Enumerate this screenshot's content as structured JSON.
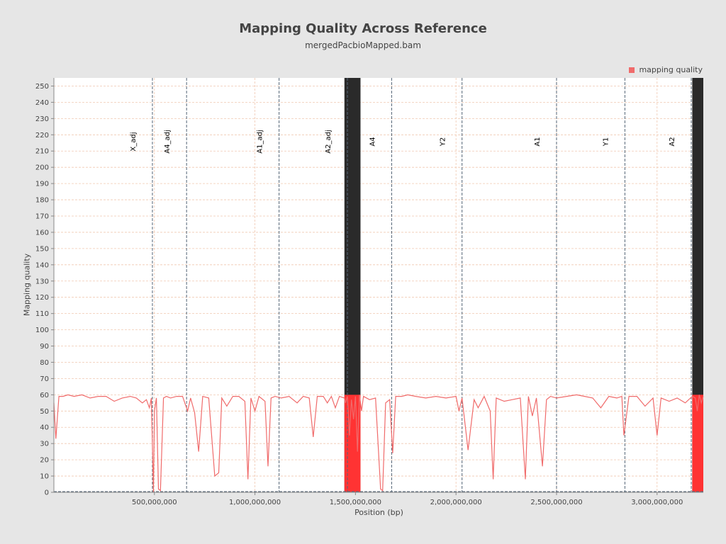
{
  "chart_data": {
    "type": "line",
    "title": "Mapping Quality Across Reference",
    "subtitle": "mergedPacbioMapped.bam",
    "xlabel": "Position (bp)",
    "ylabel": "Mapping quality",
    "xlim": [
      0,
      3230000000
    ],
    "ylim": [
      0,
      255
    ],
    "x_ticks": [
      500000000,
      1000000000,
      1500000000,
      2000000000,
      2500000000,
      3000000000
    ],
    "x_tick_labels": [
      "500,000,000",
      "1,000,000,000",
      "1,500,000,000",
      "2,000,000,000",
      "2,500,000,000",
      "3,000,000,000"
    ],
    "y_ticks": [
      0,
      10,
      20,
      30,
      40,
      50,
      60,
      70,
      80,
      90,
      100,
      110,
      120,
      130,
      140,
      150,
      160,
      170,
      180,
      190,
      200,
      210,
      220,
      230,
      240,
      250
    ],
    "grid": true,
    "legend": {
      "position": "top-right",
      "entries": [
        "mapping quality"
      ]
    },
    "colors": {
      "series": "#f06b6b",
      "background": "#ffffff",
      "grid": "#f0c8b0",
      "dense_band": "#2a2a2a",
      "dense_fill": "#ff3333"
    },
    "series": [
      {
        "name": "mapping quality",
        "x": [
          0,
          10000000,
          25000000,
          45000000,
          70000000,
          100000000,
          140000000,
          180000000,
          220000000,
          260000000,
          300000000,
          340000000,
          380000000,
          410000000,
          440000000,
          460000000,
          475000000,
          485000000,
          495000000,
          500000000,
          510000000,
          520000000,
          530000000,
          545000000,
          560000000,
          580000000,
          610000000,
          640000000,
          665000000,
          680000000,
          700000000,
          720000000,
          740000000,
          770000000,
          800000000,
          820000000,
          835000000,
          860000000,
          890000000,
          920000000,
          950000000,
          965000000,
          980000000,
          1000000000,
          1020000000,
          1050000000,
          1065000000,
          1080000000,
          1100000000,
          1130000000,
          1170000000,
          1210000000,
          1240000000,
          1270000000,
          1290000000,
          1310000000,
          1340000000,
          1360000000,
          1380000000,
          1400000000,
          1420000000,
          1445000000,
          1450000000,
          1460000000,
          1470000000,
          1480000000,
          1490000000,
          1500000000,
          1510000000,
          1520000000,
          1530000000,
          1540000000,
          1570000000,
          1600000000,
          1625000000,
          1635000000,
          1650000000,
          1670000000,
          1685000000,
          1700000000,
          1730000000,
          1760000000,
          1800000000,
          1850000000,
          1900000000,
          1950000000,
          2000000000,
          2015000000,
          2030000000,
          2060000000,
          2090000000,
          2110000000,
          2140000000,
          2170000000,
          2185000000,
          2200000000,
          2240000000,
          2280000000,
          2320000000,
          2345000000,
          2360000000,
          2380000000,
          2400000000,
          2430000000,
          2450000000,
          2470000000,
          2500000000,
          2550000000,
          2600000000,
          2640000000,
          2680000000,
          2720000000,
          2760000000,
          2800000000,
          2825000000,
          2835000000,
          2860000000,
          2900000000,
          2940000000,
          2980000000,
          3000000000,
          3020000000,
          3060000000,
          3100000000,
          3140000000,
          3175000000,
          3190000000,
          3200000000,
          3210000000,
          3220000000,
          3230000000
        ],
        "values": [
          55,
          33,
          59,
          59,
          60,
          59,
          60,
          58,
          59,
          59,
          56,
          58,
          59,
          58,
          55,
          57,
          52,
          58,
          0,
          50,
          58,
          2,
          1,
          58,
          59,
          58,
          59,
          59,
          50,
          58,
          49,
          25,
          59,
          58,
          10,
          12,
          58,
          53,
          59,
          59,
          56,
          8,
          58,
          50,
          59,
          56,
          16,
          58,
          59,
          58,
          59,
          55,
          59,
          58,
          34,
          59,
          59,
          55,
          59,
          52,
          59,
          58,
          55,
          59,
          35,
          57,
          45,
          59,
          25,
          60,
          50,
          59,
          57,
          58,
          2,
          1,
          55,
          57,
          24,
          59,
          59,
          60,
          59,
          58,
          59,
          58,
          59,
          50,
          58,
          26,
          57,
          52,
          59,
          50,
          8,
          58,
          56,
          57,
          58,
          8,
          59,
          47,
          58,
          16,
          57,
          59,
          58,
          59,
          60,
          59,
          58,
          52,
          59,
          58,
          59,
          35,
          59,
          59,
          53,
          58,
          35,
          58,
          56,
          58,
          55,
          59,
          58,
          50,
          60,
          55,
          59
        ]
      }
    ],
    "boundaries": [
      {
        "x": 490000000,
        "label": "X_adj"
      },
      {
        "x": 660000000,
        "label": "A4_adj"
      },
      {
        "x": 1120000000,
        "label": "A1_adj"
      },
      {
        "x": 1460000000,
        "label": "A2_adj"
      },
      {
        "x": 1680000000,
        "label": "A4"
      },
      {
        "x": 2030000000,
        "label": "Y2"
      },
      {
        "x": 2500000000,
        "label": "A1"
      },
      {
        "x": 2840000000,
        "label": "Y1"
      },
      {
        "x": 3170000000,
        "label": "A2"
      }
    ],
    "dense_regions": [
      [
        1445000000,
        1525000000
      ],
      [
        3175000000,
        3230000000
      ]
    ]
  }
}
